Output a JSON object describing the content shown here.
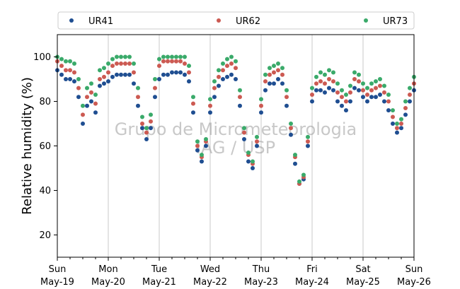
{
  "chart_data": {
    "type": "scatter",
    "ylabel": "Relative humidity (%)",
    "ylim": [
      10,
      110
    ],
    "xlim": [
      "2020-05-19T00:00",
      "2020-05-26T00:00"
    ],
    "yticks": [
      20,
      40,
      60,
      80,
      100
    ],
    "xticks": [
      {
        "x": "2020-05-19T00:00",
        "day": "Sun",
        "date": "May-19"
      },
      {
        "x": "2020-05-20T00:00",
        "day": "Mon",
        "date": "May-20"
      },
      {
        "x": "2020-05-21T00:00",
        "day": "Tue",
        "date": "May-21"
      },
      {
        "x": "2020-05-22T00:00",
        "day": "Wed",
        "date": "May-22"
      },
      {
        "x": "2020-05-23T00:00",
        "day": "Thu",
        "date": "May-23"
      },
      {
        "x": "2020-05-24T00:00",
        "day": "Fri",
        "date": "May-24"
      },
      {
        "x": "2020-05-25T00:00",
        "day": "Sat",
        "date": "May-25"
      },
      {
        "x": "2020-05-26T00:00",
        "day": "Sun",
        "date": "May-26"
      }
    ],
    "grid": "vertical",
    "legend_position": "top",
    "watermark": [
      "Grupo de Micrometeorologia",
      "IAG / USP"
    ],
    "series": [
      {
        "name": "UR41",
        "color": "#1f4e91",
        "x": [
          "2020-05-19T00:00",
          "2020-05-19T02:00",
          "2020-05-19T04:00",
          "2020-05-19T06:00",
          "2020-05-19T08:00",
          "2020-05-19T10:00",
          "2020-05-19T12:00",
          "2020-05-19T14:00",
          "2020-05-19T16:00",
          "2020-05-19T18:00",
          "2020-05-19T20:00",
          "2020-05-19T22:00",
          "2020-05-20T00:00",
          "2020-05-20T02:00",
          "2020-05-20T04:00",
          "2020-05-20T06:00",
          "2020-05-20T08:00",
          "2020-05-20T10:00",
          "2020-05-20T12:00",
          "2020-05-20T14:00",
          "2020-05-20T16:00",
          "2020-05-20T18:00",
          "2020-05-20T20:00",
          "2020-05-20T22:00",
          "2020-05-21T00:00",
          "2020-05-21T02:00",
          "2020-05-21T04:00",
          "2020-05-21T06:00",
          "2020-05-21T08:00",
          "2020-05-21T10:00",
          "2020-05-21T12:00",
          "2020-05-21T14:00",
          "2020-05-21T16:00",
          "2020-05-21T18:00",
          "2020-05-21T20:00",
          "2020-05-21T22:00",
          "2020-05-22T00:00",
          "2020-05-22T02:00",
          "2020-05-22T04:00",
          "2020-05-22T06:00",
          "2020-05-22T08:00",
          "2020-05-22T10:00",
          "2020-05-22T12:00",
          "2020-05-22T14:00",
          "2020-05-22T16:00",
          "2020-05-22T18:00",
          "2020-05-22T20:00",
          "2020-05-22T22:00",
          "2020-05-23T00:00",
          "2020-05-23T02:00",
          "2020-05-23T04:00",
          "2020-05-23T06:00",
          "2020-05-23T08:00",
          "2020-05-23T10:00",
          "2020-05-23T12:00",
          "2020-05-23T14:00",
          "2020-05-23T16:00",
          "2020-05-23T18:00",
          "2020-05-23T20:00",
          "2020-05-23T22:00",
          "2020-05-24T00:00",
          "2020-05-24T02:00",
          "2020-05-24T04:00",
          "2020-05-24T06:00",
          "2020-05-24T08:00",
          "2020-05-24T10:00",
          "2020-05-24T12:00",
          "2020-05-24T14:00",
          "2020-05-24T16:00",
          "2020-05-24T18:00",
          "2020-05-24T20:00",
          "2020-05-24T22:00",
          "2020-05-25T00:00",
          "2020-05-25T02:00",
          "2020-05-25T04:00",
          "2020-05-25T06:00",
          "2020-05-25T08:00",
          "2020-05-25T10:00",
          "2020-05-25T12:00",
          "2020-05-25T14:00",
          "2020-05-25T16:00",
          "2020-05-25T18:00",
          "2020-05-25T20:00",
          "2020-05-25T22:00",
          "2020-05-26T00:00"
        ],
        "y": [
          94,
          92,
          90,
          90,
          89,
          82,
          70,
          78,
          80,
          75,
          87,
          88,
          89,
          91,
          92,
          92,
          92,
          92,
          88,
          78,
          68,
          63,
          68,
          82,
          90,
          92,
          92,
          93,
          93,
          93,
          92,
          89,
          75,
          58,
          53,
          60,
          75,
          82,
          87,
          90,
          91,
          92,
          90,
          78,
          63,
          53,
          50,
          60,
          75,
          85,
          88,
          88,
          90,
          88,
          78,
          65,
          52,
          43,
          45,
          60,
          80,
          85,
          85,
          84,
          86,
          85,
          80,
          78,
          76,
          80,
          86,
          85,
          82,
          80,
          82,
          82,
          83,
          80,
          76,
          70,
          66,
          68,
          74,
          80,
          85
        ]
      },
      {
        "name": "UR62",
        "color": "#cc5a52",
        "x": [
          "2020-05-19T00:00",
          "2020-05-19T02:00",
          "2020-05-19T04:00",
          "2020-05-19T06:00",
          "2020-05-19T08:00",
          "2020-05-19T10:00",
          "2020-05-19T12:00",
          "2020-05-19T14:00",
          "2020-05-19T16:00",
          "2020-05-19T18:00",
          "2020-05-19T20:00",
          "2020-05-19T22:00",
          "2020-05-20T00:00",
          "2020-05-20T02:00",
          "2020-05-20T04:00",
          "2020-05-20T06:00",
          "2020-05-20T08:00",
          "2020-05-20T10:00",
          "2020-05-20T12:00",
          "2020-05-20T14:00",
          "2020-05-20T16:00",
          "2020-05-20T18:00",
          "2020-05-20T20:00",
          "2020-05-20T22:00",
          "2020-05-21T00:00",
          "2020-05-21T02:00",
          "2020-05-21T04:00",
          "2020-05-21T06:00",
          "2020-05-21T08:00",
          "2020-05-21T10:00",
          "2020-05-21T12:00",
          "2020-05-21T14:00",
          "2020-05-21T16:00",
          "2020-05-21T18:00",
          "2020-05-21T20:00",
          "2020-05-21T22:00",
          "2020-05-22T00:00",
          "2020-05-22T02:00",
          "2020-05-22T04:00",
          "2020-05-22T06:00",
          "2020-05-22T08:00",
          "2020-05-22T10:00",
          "2020-05-22T12:00",
          "2020-05-22T14:00",
          "2020-05-22T16:00",
          "2020-05-22T18:00",
          "2020-05-22T20:00",
          "2020-05-22T22:00",
          "2020-05-23T00:00",
          "2020-05-23T02:00",
          "2020-05-23T04:00",
          "2020-05-23T06:00",
          "2020-05-23T08:00",
          "2020-05-23T10:00",
          "2020-05-23T12:00",
          "2020-05-23T14:00",
          "2020-05-23T16:00",
          "2020-05-23T18:00",
          "2020-05-23T20:00",
          "2020-05-23T22:00",
          "2020-05-24T00:00",
          "2020-05-24T02:00",
          "2020-05-24T04:00",
          "2020-05-24T06:00",
          "2020-05-24T08:00",
          "2020-05-24T10:00",
          "2020-05-24T12:00",
          "2020-05-24T14:00",
          "2020-05-24T16:00",
          "2020-05-24T18:00",
          "2020-05-24T20:00",
          "2020-05-24T22:00",
          "2020-05-25T00:00",
          "2020-05-25T02:00",
          "2020-05-25T04:00",
          "2020-05-25T06:00",
          "2020-05-25T08:00",
          "2020-05-25T10:00",
          "2020-05-25T12:00",
          "2020-05-25T14:00",
          "2020-05-25T16:00",
          "2020-05-25T18:00",
          "2020-05-25T20:00",
          "2020-05-25T22:00",
          "2020-05-26T00:00"
        ],
        "y": [
          98,
          96,
          94,
          94,
          93,
          86,
          74,
          82,
          84,
          79,
          90,
          91,
          93,
          96,
          97,
          97,
          97,
          97,
          93,
          82,
          70,
          66,
          71,
          86,
          96,
          98,
          98,
          98,
          98,
          98,
          97,
          93,
          79,
          60,
          55,
          62,
          78,
          86,
          91,
          94,
          96,
          97,
          95,
          82,
          66,
          56,
          52,
          62,
          78,
          89,
          92,
          93,
          94,
          92,
          82,
          68,
          55,
          43,
          46,
          62,
          83,
          88,
          89,
          88,
          90,
          89,
          84,
          82,
          80,
          84,
          90,
          89,
          85,
          83,
          85,
          86,
          87,
          84,
          80,
          73,
          68,
          70,
          77,
          83,
          88
        ]
      },
      {
        "name": "UR73",
        "color": "#3aaa6a",
        "x": [
          "2020-05-19T00:00",
          "2020-05-19T02:00",
          "2020-05-19T04:00",
          "2020-05-19T06:00",
          "2020-05-19T08:00",
          "2020-05-19T10:00",
          "2020-05-19T12:00",
          "2020-05-19T14:00",
          "2020-05-19T16:00",
          "2020-05-19T18:00",
          "2020-05-19T20:00",
          "2020-05-19T22:00",
          "2020-05-20T00:00",
          "2020-05-20T02:00",
          "2020-05-20T04:00",
          "2020-05-20T06:00",
          "2020-05-20T08:00",
          "2020-05-20T10:00",
          "2020-05-20T12:00",
          "2020-05-20T14:00",
          "2020-05-20T16:00",
          "2020-05-20T18:00",
          "2020-05-20T20:00",
          "2020-05-20T22:00",
          "2020-05-21T00:00",
          "2020-05-21T02:00",
          "2020-05-21T04:00",
          "2020-05-21T06:00",
          "2020-05-21T08:00",
          "2020-05-21T10:00",
          "2020-05-21T12:00",
          "2020-05-21T14:00",
          "2020-05-21T16:00",
          "2020-05-21T18:00",
          "2020-05-21T20:00",
          "2020-05-21T22:00",
          "2020-05-22T00:00",
          "2020-05-22T02:00",
          "2020-05-22T04:00",
          "2020-05-22T06:00",
          "2020-05-22T08:00",
          "2020-05-22T10:00",
          "2020-05-22T12:00",
          "2020-05-22T14:00",
          "2020-05-22T16:00",
          "2020-05-22T18:00",
          "2020-05-22T20:00",
          "2020-05-22T22:00",
          "2020-05-23T00:00",
          "2020-05-23T02:00",
          "2020-05-23T04:00",
          "2020-05-23T06:00",
          "2020-05-23T08:00",
          "2020-05-23T10:00",
          "2020-05-23T12:00",
          "2020-05-23T14:00",
          "2020-05-23T16:00",
          "2020-05-23T18:00",
          "2020-05-23T20:00",
          "2020-05-23T22:00",
          "2020-05-24T00:00",
          "2020-05-24T02:00",
          "2020-05-24T04:00",
          "2020-05-24T06:00",
          "2020-05-24T08:00",
          "2020-05-24T10:00",
          "2020-05-24T12:00",
          "2020-05-24T14:00",
          "2020-05-24T16:00",
          "2020-05-24T18:00",
          "2020-05-24T20:00",
          "2020-05-24T22:00",
          "2020-05-25T00:00",
          "2020-05-25T02:00",
          "2020-05-25T04:00",
          "2020-05-25T06:00",
          "2020-05-25T08:00",
          "2020-05-25T10:00",
          "2020-05-25T12:00",
          "2020-05-25T14:00",
          "2020-05-25T16:00",
          "2020-05-25T18:00",
          "2020-05-25T20:00",
          "2020-05-25T22:00",
          "2020-05-26T00:00"
        ],
        "y": [
          100,
          99,
          98,
          98,
          97,
          90,
          78,
          86,
          88,
          83,
          94,
          95,
          97,
          99,
          100,
          100,
          100,
          100,
          97,
          86,
          73,
          68,
          74,
          90,
          99,
          100,
          100,
          100,
          100,
          100,
          100,
          96,
          82,
          62,
          56,
          63,
          81,
          89,
          94,
          97,
          99,
          100,
          98,
          85,
          68,
          57,
          53,
          64,
          81,
          92,
          95,
          96,
          97,
          95,
          85,
          70,
          56,
          44,
          47,
          64,
          86,
          91,
          93,
          92,
          94,
          93,
          88,
          85,
          83,
          87,
          93,
          92,
          88,
          86,
          88,
          89,
          90,
          87,
          83,
          76,
          70,
          72,
          80,
          86,
          91
        ]
      }
    ]
  }
}
